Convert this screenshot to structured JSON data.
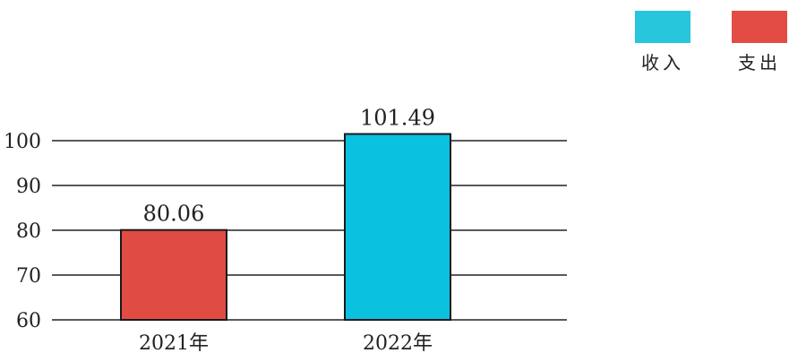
{
  "chart_data": {
    "type": "bar",
    "categories": [
      "2021年",
      "2022年"
    ],
    "values": [
      80.06,
      101.49
    ],
    "data_labels": [
      "80.06",
      "101.49"
    ],
    "bar_colors": [
      "#e04b43",
      "#0ac1e0"
    ],
    "ylim": [
      60,
      100
    ],
    "yticks": [
      60,
      70,
      80,
      90,
      100
    ],
    "ytick_labels": [
      "60",
      "70",
      "80",
      "90",
      "100"
    ],
    "grid": true,
    "legend_position": "top-right",
    "legend": [
      {
        "label": "收入",
        "color": "#28c6dc"
      },
      {
        "label": "支出",
        "color": "#e24c44"
      }
    ]
  }
}
